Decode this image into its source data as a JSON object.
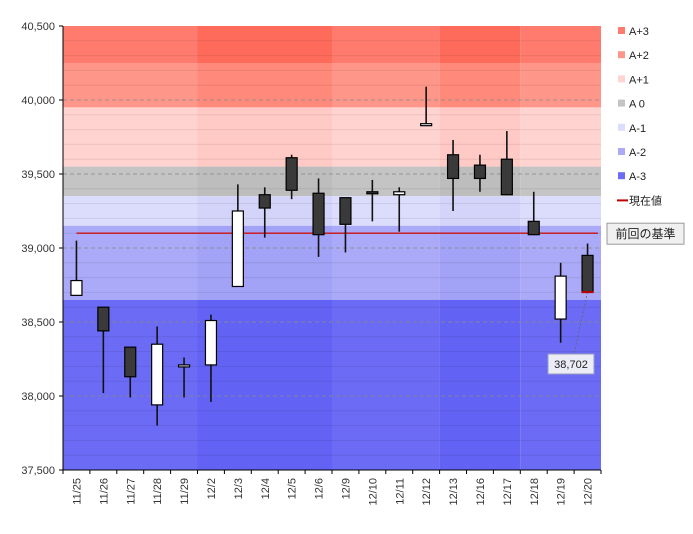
{
  "chart_data": {
    "type": "candlestick",
    "title": "",
    "xlabel": "",
    "ylabel": "",
    "ylim": [
      37500,
      40500
    ],
    "yticks": [
      37500,
      38000,
      38500,
      39000,
      39500,
      40000,
      40500
    ],
    "ytick_labels": [
      "37,500",
      "38,000",
      "38,500",
      "39,000",
      "39,500",
      "40,000",
      "40,500"
    ],
    "grid": true,
    "legend_position": "right",
    "categories": [
      "11/25",
      "11/26",
      "11/27",
      "11/28",
      "11/29",
      "12/2",
      "12/3",
      "12/4",
      "12/5",
      "12/6",
      "12/9",
      "12/10",
      "12/11",
      "12/12",
      "12/13",
      "12/16",
      "12/17",
      "12/18",
      "12/19",
      "12/20"
    ],
    "candles": [
      {
        "date": "11/25",
        "open": 38680,
        "high": 39050,
        "low": 38680,
        "close": 38780
      },
      {
        "date": "11/26",
        "open": 38600,
        "high": 38600,
        "low": 38020,
        "close": 38440
      },
      {
        "date": "11/27",
        "open": 38330,
        "high": 38330,
        "low": 37990,
        "close": 38130
      },
      {
        "date": "11/28",
        "open": 37940,
        "high": 38470,
        "low": 37800,
        "close": 38350
      },
      {
        "date": "11/29",
        "open": 38200,
        "high": 38260,
        "low": 37990,
        "close": 38210
      },
      {
        "date": "12/2",
        "open": 38210,
        "high": 38550,
        "low": 37960,
        "close": 38510
      },
      {
        "date": "12/3",
        "open": 38740,
        "high": 39430,
        "low": 38740,
        "close": 39250
      },
      {
        "date": "12/4",
        "open": 39360,
        "high": 39410,
        "low": 39070,
        "close": 39270
      },
      {
        "date": "12/5",
        "open": 39610,
        "high": 39630,
        "low": 39330,
        "close": 39390
      },
      {
        "date": "12/6",
        "open": 39370,
        "high": 39470,
        "low": 38940,
        "close": 39090
      },
      {
        "date": "12/9",
        "open": 39340,
        "high": 39340,
        "low": 38970,
        "close": 39160
      },
      {
        "date": "12/10",
        "open": 39380,
        "high": 39460,
        "low": 39180,
        "close": 39370
      },
      {
        "date": "12/11",
        "open": 39360,
        "high": 39410,
        "low": 39110,
        "close": 39380
      },
      {
        "date": "12/12",
        "open": 39840,
        "high": 40090,
        "low": 39830,
        "close": 39840
      },
      {
        "date": "12/13",
        "open": 39630,
        "high": 39730,
        "low": 39250,
        "close": 39470
      },
      {
        "date": "12/16",
        "open": 39560,
        "high": 39630,
        "low": 39380,
        "close": 39470
      },
      {
        "date": "12/17",
        "open": 39600,
        "high": 39790,
        "low": 39360,
        "close": 39360
      },
      {
        "date": "12/18",
        "open": 39180,
        "high": 39380,
        "low": 39090,
        "close": 39090
      },
      {
        "date": "12/19",
        "open": 38520,
        "high": 38900,
        "low": 38360,
        "close": 38810
      },
      {
        "date": "12/20",
        "open": 38950,
        "high": 39030,
        "low": 38700,
        "close": 38702
      }
    ],
    "bands": [
      {
        "name": "A+3",
        "from": 40250,
        "to": 40500,
        "color": "#ff7b6e",
        "color_alt": "#ff6b5b"
      },
      {
        "name": "A+2",
        "from": 39950,
        "to": 40250,
        "color": "#ff968a",
        "color_alt": "#ff8a7c"
      },
      {
        "name": "A+1",
        "from": 39750,
        "to": 39950,
        "color": "#ffd3d0",
        "color_alt": "#ffc9c5"
      },
      {
        "name": "A 0",
        "from": 39550,
        "to": 39750,
        "color": "#ffd3d0",
        "color_alt": "#ffc9c5"
      },
      {
        "name": "A 0 core",
        "from": 39350,
        "to": 39550,
        "color": "#c4c4c4",
        "color_alt": "#bdbdbd"
      },
      {
        "name": "A-1",
        "from": 39150,
        "to": 39350,
        "color": "#dcdcfc",
        "color_alt": "#d4d4fa"
      },
      {
        "name": "A-2",
        "from": 38650,
        "to": 39150,
        "color": "#aaaaf8",
        "color_alt": "#a2a2f6"
      },
      {
        "name": "A-3",
        "from": 37500,
        "to": 38650,
        "color": "#6b6bf6",
        "color_alt": "#6262f4"
      }
    ],
    "legend": [
      {
        "label": "A+3",
        "color": "#ff7b6e",
        "kind": "square"
      },
      {
        "label": "A+2",
        "color": "#ff968a",
        "kind": "square"
      },
      {
        "label": "A+1",
        "color": "#ffd3d0",
        "kind": "square"
      },
      {
        "label": "A 0",
        "color": "#c4c4c4",
        "kind": "square"
      },
      {
        "label": "A-1",
        "color": "#dcdcfc",
        "kind": "square"
      },
      {
        "label": "A-2",
        "color": "#aaaaf8",
        "kind": "square"
      },
      {
        "label": "A-3",
        "color": "#6b6bf6",
        "kind": "square"
      },
      {
        "label": "現在値",
        "color": "#c00000",
        "kind": "line"
      }
    ],
    "reference_line": {
      "label": "前回の基準",
      "value": 39100,
      "color": "#cc1111"
    },
    "current_value": {
      "label": "38,702",
      "value": 38702
    },
    "week_groups": [
      {
        "from": "11/25",
        "to": "11/29",
        "shade": "base"
      },
      {
        "from": "12/2",
        "to": "12/6",
        "shade": "alt"
      },
      {
        "from": "12/9",
        "to": "12/12",
        "shade": "base"
      },
      {
        "from": "12/13",
        "to": "12/17",
        "shade": "alt"
      },
      {
        "from": "12/18",
        "to": "12/20",
        "shade": "base"
      }
    ],
    "colors": {
      "up": "#ffffff",
      "down": "#3a3a3a",
      "wick": "#111111",
      "grid": "#8a8a8a",
      "axis": "#000000"
    }
  }
}
